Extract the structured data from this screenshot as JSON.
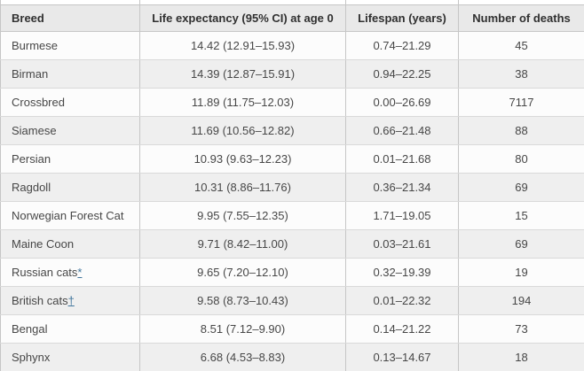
{
  "colors": {
    "header_bg": "#e9e9e9",
    "row_odd_bg": "#fcfcfc",
    "row_even_bg": "#efefef",
    "border_vertical": "#c6c6c6",
    "border_horizontal": "#d9d9d9",
    "text": "#474747",
    "link": "#40759c"
  },
  "chart_data": {
    "type": "table",
    "columns": [
      "Breed",
      "Life expectancy (95% CI) at age 0",
      "Lifespan (years)",
      "Number of deaths"
    ],
    "rows": [
      {
        "breed": "Burmese",
        "marker": "",
        "life_expectancy": "14.42 (12.91–15.93)",
        "lifespan": "0.74–21.29",
        "deaths": "45"
      },
      {
        "breed": "Birman",
        "marker": "",
        "life_expectancy": "14.39 (12.87–15.91)",
        "lifespan": "0.94–22.25",
        "deaths": "38"
      },
      {
        "breed": "Crossbred",
        "marker": "",
        "life_expectancy": "11.89 (11.75–12.03)",
        "lifespan": "0.00–26.69",
        "deaths": "7117"
      },
      {
        "breed": "Siamese",
        "marker": "",
        "life_expectancy": "11.69 (10.56–12.82)",
        "lifespan": "0.66–21.48",
        "deaths": "88"
      },
      {
        "breed": "Persian",
        "marker": "",
        "life_expectancy": "10.93 (9.63–12.23)",
        "lifespan": "0.01–21.68",
        "deaths": "80"
      },
      {
        "breed": "Ragdoll",
        "marker": "",
        "life_expectancy": "10.31 (8.86–11.76)",
        "lifespan": "0.36–21.34",
        "deaths": "69"
      },
      {
        "breed": "Norwegian Forest Cat",
        "marker": "",
        "life_expectancy": "9.95 (7.55–12.35)",
        "lifespan": "1.71–19.05",
        "deaths": "15"
      },
      {
        "breed": "Maine Coon",
        "marker": "",
        "life_expectancy": "9.71 (8.42–11.00)",
        "lifespan": "0.03–21.61",
        "deaths": "69"
      },
      {
        "breed": "Russian cats",
        "marker": "*",
        "life_expectancy": "9.65 (7.20–12.10)",
        "lifespan": "0.32–19.39",
        "deaths": "19"
      },
      {
        "breed": "British cats",
        "marker": "†",
        "life_expectancy": "9.58 (8.73–10.43)",
        "lifespan": "0.01–22.32",
        "deaths": "194"
      },
      {
        "breed": "Bengal",
        "marker": "",
        "life_expectancy": "8.51 (7.12–9.90)",
        "lifespan": "0.14–21.22",
        "deaths": "73"
      },
      {
        "breed": "Sphynx",
        "marker": "",
        "life_expectancy": "6.68 (4.53–8.83)",
        "lifespan": "0.13–14.67",
        "deaths": "18"
      }
    ]
  }
}
